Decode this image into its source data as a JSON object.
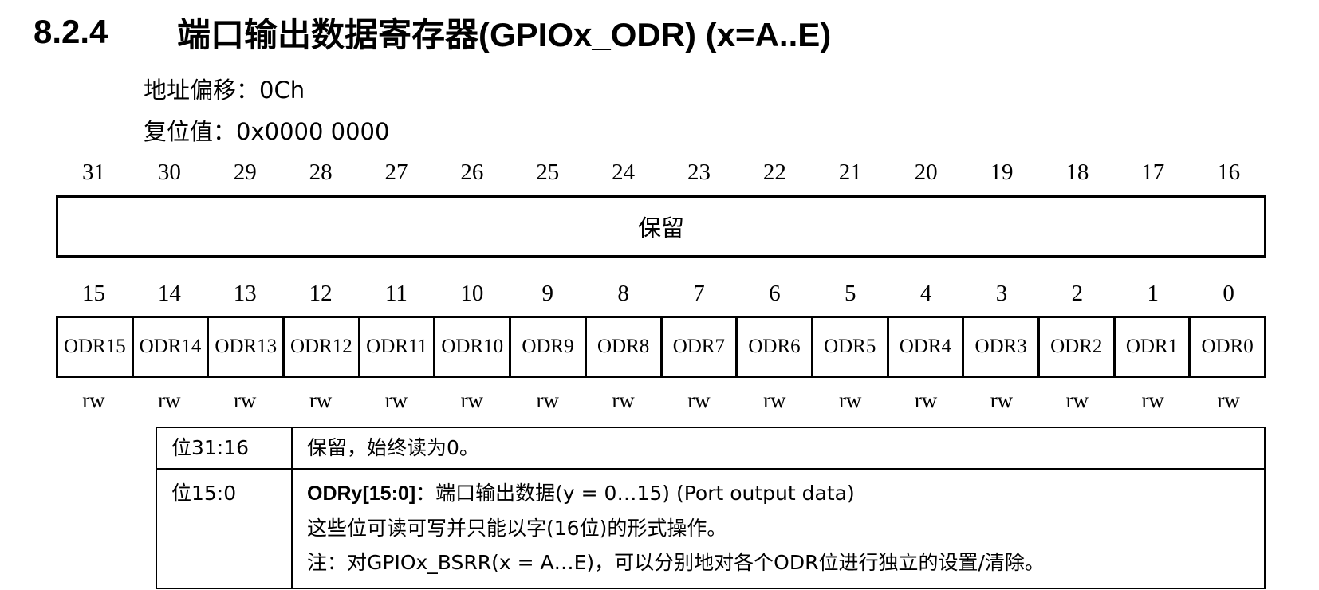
{
  "section": {
    "number": "8.2.4",
    "title": "端口输出数据寄存器(GPIOx_ODR) (x=A..E)"
  },
  "address_offset": "地址偏移：0Ch",
  "reset_value": "复位值：0x0000 0000",
  "bits_high": [
    "31",
    "30",
    "29",
    "28",
    "27",
    "26",
    "25",
    "24",
    "23",
    "22",
    "21",
    "20",
    "19",
    "18",
    "17",
    "16"
  ],
  "reserved_label": "保留",
  "bits_low": [
    "15",
    "14",
    "13",
    "12",
    "11",
    "10",
    "9",
    "8",
    "7",
    "6",
    "5",
    "4",
    "3",
    "2",
    "1",
    "0"
  ],
  "fields_low": [
    "ODR15",
    "ODR14",
    "ODR13",
    "ODR12",
    "ODR11",
    "ODR10",
    "ODR9",
    "ODR8",
    "ODR7",
    "ODR6",
    "ODR5",
    "ODR4",
    "ODR3",
    "ODR2",
    "ODR1",
    "ODR0"
  ],
  "access": [
    "rw",
    "rw",
    "rw",
    "rw",
    "rw",
    "rw",
    "rw",
    "rw",
    "rw",
    "rw",
    "rw",
    "rw",
    "rw",
    "rw",
    "rw",
    "rw"
  ],
  "desc": {
    "row1": {
      "bits": "位31:16",
      "text": "保留，始终读为0。"
    },
    "row2": {
      "bits": "位15:0",
      "field": "ODRy[15:0]",
      "field_desc": "：端口输出数据(y = 0…15) (Port output data)",
      "line2": "这些位可读可写并只能以字(16位)的形式操作。",
      "line3": "注：对GPIOx_BSRR(x = A…E)，可以分别地对各个ODR位进行独立的设置/清除。"
    }
  }
}
